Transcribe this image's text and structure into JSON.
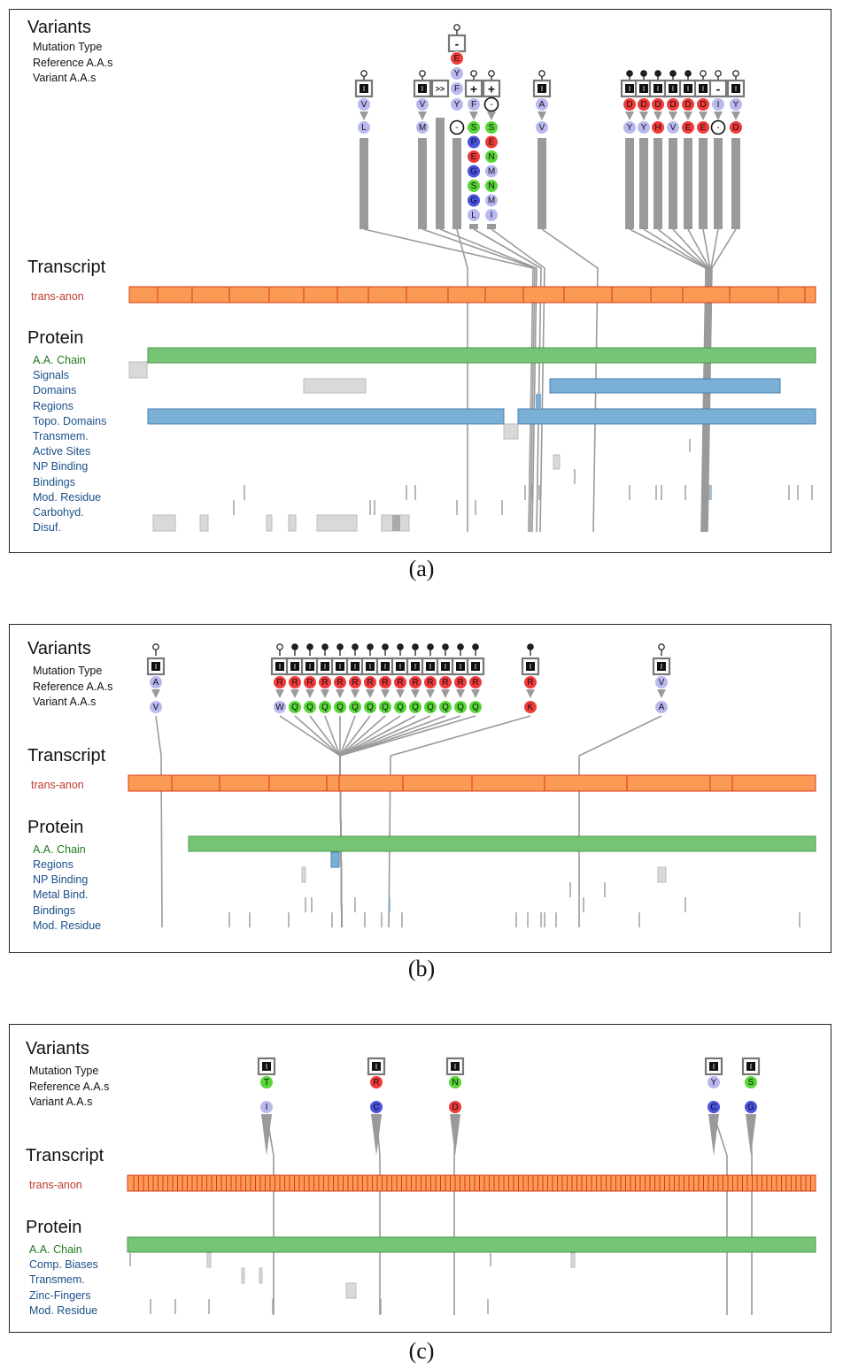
{
  "labels": {
    "variants": "Variants",
    "mutation_type": "Mutation Type",
    "reference": "Reference A.A.s",
    "variant": "Variant A.A.s",
    "transcript": "Transcript",
    "transcript_name": "trans-anon",
    "protein": "Protein"
  },
  "colors": {
    "transcript_fill": "#fb9a55",
    "transcript_border": "#d73a1a",
    "chain": "#77c477",
    "blue_feature": "#7aafd6",
    "grey_feature": "#d9d9d9",
    "hydrophobic": "#b9b9f0",
    "acidic": "#f03a3a",
    "polar": "#58d638",
    "basic": "#4a52e0",
    "connector": "#9a9a9a"
  },
  "panels": [
    {
      "caption": "(a)",
      "tracks": [
        "A.A. Chain",
        "Signals",
        "Domains",
        "Regions",
        "Topo. Domains",
        "Transmem.",
        "Active Sites",
        "NP Binding",
        "Bindings",
        "Mod. Residue",
        "Carbohyd.",
        "Disuf."
      ],
      "variants": [
        {
          "mut": "I",
          "ref": [
            "V"
          ],
          "var": [
            "L"
          ]
        },
        {
          "mut": "I",
          "ref": [
            "V"
          ],
          "var": [
            "M"
          ]
        },
        {
          "mut": ">>",
          "ref": [],
          "var": []
        },
        {
          "mut": "-",
          "ref": [
            "E",
            "Y",
            "F",
            "Y"
          ],
          "var": [
            "-"
          ]
        },
        {
          "mut": "+",
          "ref": [
            "F"
          ],
          "var": [
            "S",
            "P",
            "E",
            "G",
            "S",
            "G",
            "L"
          ]
        },
        {
          "mut": "+",
          "ref": [
            "-"
          ],
          "var": [
            "S",
            "E",
            "N",
            "M",
            "N",
            "M",
            "I"
          ]
        },
        {
          "mut": "I",
          "ref": [
            "A"
          ],
          "var": [
            "V"
          ]
        },
        {
          "mut": "I",
          "ref": [
            "D"
          ],
          "var": [
            "Y"
          ]
        },
        {
          "mut": "I",
          "ref": [
            "D"
          ],
          "var": [
            "Y"
          ]
        },
        {
          "mut": "I",
          "ref": [
            "D"
          ],
          "var": [
            "H"
          ]
        },
        {
          "mut": "I",
          "ref": [
            "D"
          ],
          "var": [
            "V"
          ]
        },
        {
          "mut": "I",
          "ref": [
            "D"
          ],
          "var": [
            "E"
          ]
        },
        {
          "mut": "I",
          "ref": [
            "D"
          ],
          "var": [
            "E"
          ]
        },
        {
          "mut": "-",
          "ref": [
            "I"
          ],
          "var": [
            "-"
          ]
        },
        {
          "mut": "I",
          "ref": [
            "Y"
          ],
          "var": [
            "D"
          ]
        }
      ]
    },
    {
      "caption": "(b)",
      "tracks": [
        "A.A. Chain",
        "Regions",
        "NP Binding",
        "Metal Bind.",
        "Bindings",
        "Mod. Residue"
      ],
      "variants": [
        {
          "mut": "I",
          "ref": [
            "A"
          ],
          "var": [
            "V"
          ]
        },
        {
          "mut": "I",
          "ref": [
            "R"
          ],
          "var": [
            "W"
          ]
        },
        {
          "mut": "I",
          "ref": [
            "R"
          ],
          "var": [
            "Q"
          ]
        },
        {
          "mut": "I",
          "ref": [
            "R"
          ],
          "var": [
            "Q"
          ]
        },
        {
          "mut": "I",
          "ref": [
            "R"
          ],
          "var": [
            "Q"
          ]
        },
        {
          "mut": "I",
          "ref": [
            "R"
          ],
          "var": [
            "Q"
          ]
        },
        {
          "mut": "I",
          "ref": [
            "R"
          ],
          "var": [
            "Q"
          ]
        },
        {
          "mut": "I",
          "ref": [
            "R"
          ],
          "var": [
            "Q"
          ]
        },
        {
          "mut": "I",
          "ref": [
            "R"
          ],
          "var": [
            "Q"
          ]
        },
        {
          "mut": "I",
          "ref": [
            "R"
          ],
          "var": [
            "Q"
          ]
        },
        {
          "mut": "I",
          "ref": [
            "R"
          ],
          "var": [
            "Q"
          ]
        },
        {
          "mut": "I",
          "ref": [
            "R"
          ],
          "var": [
            "Q"
          ]
        },
        {
          "mut": "I",
          "ref": [
            "R"
          ],
          "var": [
            "Q"
          ]
        },
        {
          "mut": "I",
          "ref": [
            "R"
          ],
          "var": [
            "Q"
          ]
        },
        {
          "mut": "I",
          "ref": [
            "R"
          ],
          "var": [
            "Q"
          ]
        },
        {
          "mut": "I",
          "ref": [
            "R"
          ],
          "var": [
            "K"
          ]
        },
        {
          "mut": "I",
          "ref": [
            "V"
          ],
          "var": [
            "A"
          ]
        }
      ]
    },
    {
      "caption": "(c)",
      "tracks": [
        "A.A. Chain",
        "Comp. Biases",
        "Transmem.",
        "Zinc-Fingers",
        "Mod. Residue"
      ],
      "variants": [
        {
          "mut": "I",
          "ref": [
            "T"
          ],
          "var": [
            "I"
          ]
        },
        {
          "mut": "I",
          "ref": [
            "R"
          ],
          "var": [
            "C"
          ]
        },
        {
          "mut": "I",
          "ref": [
            "N"
          ],
          "var": [
            "D"
          ]
        },
        {
          "mut": "I",
          "ref": [
            "Y"
          ],
          "var": [
            "C"
          ]
        },
        {
          "mut": "I",
          "ref": [
            "S"
          ],
          "var": [
            "G"
          ]
        }
      ]
    }
  ]
}
